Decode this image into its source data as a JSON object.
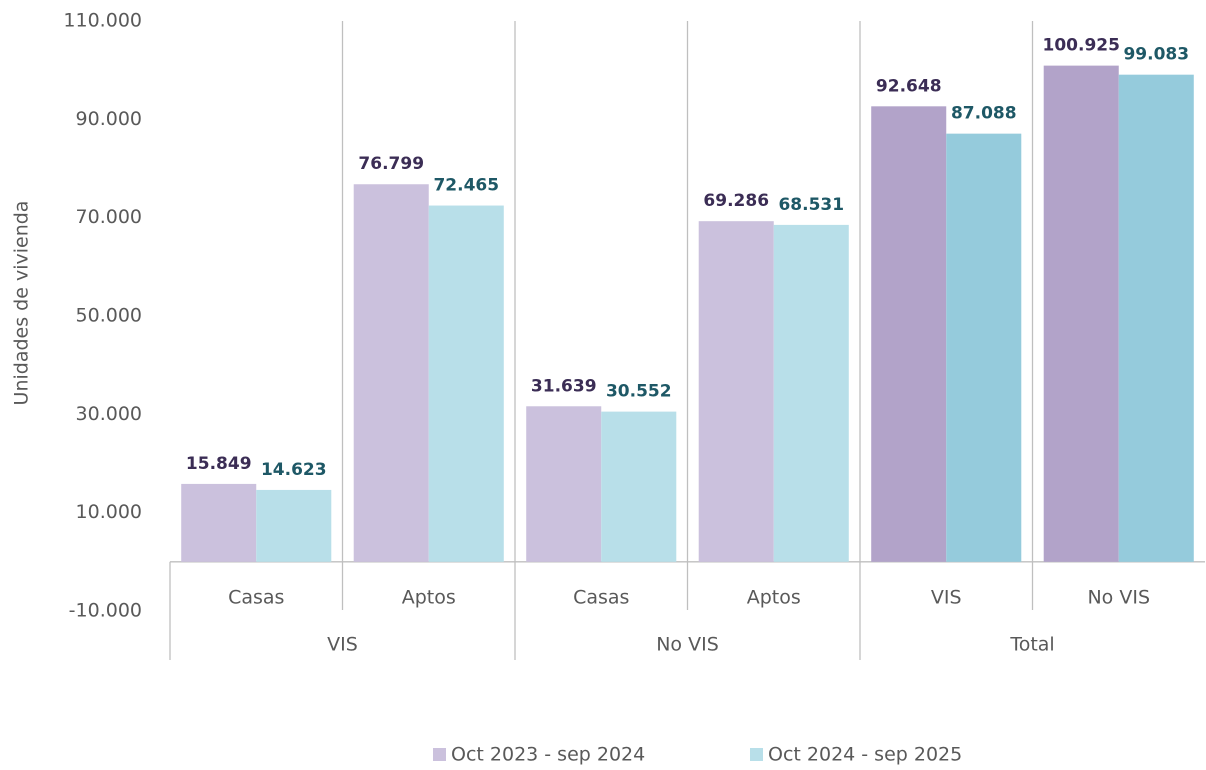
{
  "chart_data": {
    "type": "bar",
    "y_label": "Unidades de vivienda",
    "categories": [
      "Casas",
      "Aptos",
      "Casas",
      "Aptos",
      "VIS",
      "No VIS"
    ],
    "groups": [
      "VIS",
      "VIS",
      "No VIS",
      "No VIS",
      "Total",
      "Total"
    ],
    "series": [
      {
        "name": "Oct 2023 - sep 2024",
        "color": "#cbc1dd",
        "label_color": "#3b2d55",
        "colors": [
          "#cbc1dd",
          "#cbc1dd",
          "#cbc1dd",
          "#cbc1dd",
          "#b2a3c9",
          "#b2a3c9"
        ],
        "values": [
          15849,
          76799,
          31639,
          69286,
          92648,
          100925
        ],
        "value_labels": [
          "15.849",
          "76.799",
          "31.639",
          "69.286",
          "92.648",
          "100.925"
        ]
      },
      {
        "name": "Oct 2024 - sep 2025",
        "color": "#b8dfe9",
        "label_color": "#1e5866",
        "colors": [
          "#b8dfe9",
          "#b8dfe9",
          "#b8dfe9",
          "#b8dfe9",
          "#95cbdc",
          "#95cbdc"
        ],
        "values": [
          14623,
          72465,
          30552,
          68531,
          87088,
          99083
        ],
        "value_labels": [
          "14.623",
          "72.465",
          "30.552",
          "68.531",
          "87.088",
          "99.083"
        ]
      }
    ],
    "ylim": [
      -10000,
      110000
    ],
    "yticks": [
      {
        "value": -10000,
        "label": "-10.000"
      },
      {
        "value": 10000,
        "label": "10.000"
      },
      {
        "value": 30000,
        "label": "30.000"
      },
      {
        "value": 50000,
        "label": "50.000"
      },
      {
        "value": 70000,
        "label": "70.000"
      },
      {
        "value": 90000,
        "label": "90.000"
      },
      {
        "value": 110000,
        "label": "110.000"
      }
    ],
    "grid": false,
    "legend": "bottom"
  }
}
